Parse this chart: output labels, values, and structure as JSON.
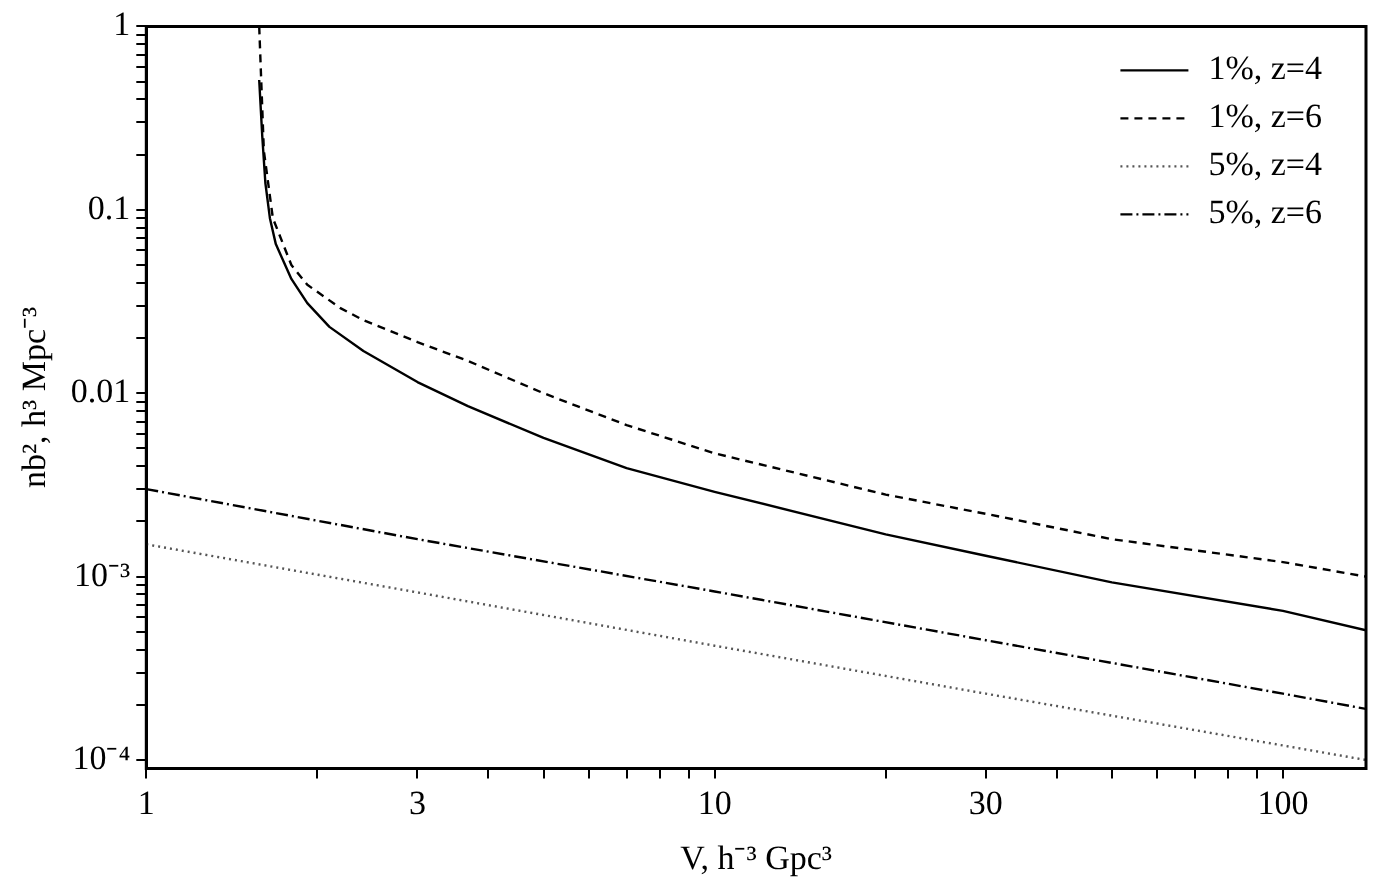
{
  "chart_data": {
    "type": "line",
    "xlabel": "V, h⁻³ Gpc³",
    "ylabel": "nb², h³ Mpc⁻³",
    "log": "xy",
    "grid": false,
    "legend": "top right",
    "marker": "none",
    "xlim": [
      1,
      140
    ],
    "xticks": [
      1,
      {
        "value": 2,
        "label": null
      },
      3,
      {
        "value": 4,
        "label": null
      },
      {
        "value": 5,
        "label": null
      },
      {
        "value": 6,
        "label": null
      },
      {
        "value": 7,
        "label": null
      },
      {
        "value": 8,
        "label": null
      },
      {
        "value": 9,
        "label": null
      },
      10,
      {
        "value": 20,
        "label": null
      },
      30,
      {
        "value": 40,
        "label": null
      },
      {
        "value": 50,
        "label": null
      },
      {
        "value": 60,
        "label": null
      },
      {
        "value": 70,
        "label": null
      },
      {
        "value": 80,
        "label": null
      },
      {
        "value": 90,
        "label": null
      },
      100
    ],
    "ylim": [
      9e-05,
      1
    ],
    "yticks": [
      {
        "value": 0.0001,
        "label": "10⁻⁴"
      },
      {
        "value": 0.0002,
        "label": null
      },
      {
        "value": 0.0003,
        "label": null
      },
      {
        "value": 0.0004,
        "label": null
      },
      {
        "value": 0.0005,
        "label": null
      },
      {
        "value": 0.0006,
        "label": null
      },
      {
        "value": 0.0007,
        "label": null
      },
      {
        "value": 0.0008,
        "label": null
      },
      {
        "value": 0.0009,
        "label": null
      },
      {
        "value": 0.001,
        "label": "10⁻³"
      },
      {
        "value": 0.002,
        "label": null
      },
      {
        "value": 0.003,
        "label": null
      },
      {
        "value": 0.004,
        "label": null
      },
      {
        "value": 0.005,
        "label": null
      },
      {
        "value": 0.006,
        "label": null
      },
      {
        "value": 0.007,
        "label": null
      },
      {
        "value": 0.008,
        "label": null
      },
      {
        "value": 0.009,
        "label": null
      },
      0.01,
      {
        "value": 0.02,
        "label": null
      },
      {
        "value": 0.03,
        "label": null
      },
      {
        "value": 0.04,
        "label": null
      },
      {
        "value": 0.05,
        "label": null
      },
      {
        "value": 0.06,
        "label": null
      },
      {
        "value": 0.07,
        "label": null
      },
      {
        "value": 0.08,
        "label": null
      },
      {
        "value": 0.09,
        "label": null
      },
      0.1,
      {
        "value": 0.2,
        "label": null
      },
      {
        "value": 0.3,
        "label": null
      },
      {
        "value": 0.4,
        "label": null
      },
      {
        "value": 0.5,
        "label": null
      },
      {
        "value": 0.6,
        "label": null
      },
      {
        "value": 0.7,
        "label": null
      },
      {
        "value": 0.8,
        "label": null
      },
      {
        "value": 0.9,
        "label": null
      },
      1
    ],
    "series": [
      {
        "name": "1%, z=4",
        "color": "#000000",
        "line_style": "solid",
        "x": [
          1.58,
          1.6,
          1.62,
          1.65,
          1.69,
          1.8,
          1.92,
          2.1,
          2.41,
          3,
          3.68,
          5,
          7,
          10,
          20,
          30,
          50,
          100,
          140
        ],
        "values": [
          0.51,
          0.25,
          0.14,
          0.09,
          0.065,
          0.042,
          0.031,
          0.023,
          0.017,
          0.0115,
          0.0085,
          0.0057,
          0.0039,
          0.0029,
          0.0017,
          0.0013,
          0.00093,
          0.00065,
          0.00051
        ]
      },
      {
        "name": "1%, z=6",
        "color": "#000000",
        "line_style": "dashed",
        "x": [
          1.58,
          1.61,
          1.67,
          1.8,
          1.92,
          2.2,
          2.41,
          3,
          3.68,
          5,
          7,
          10,
          20,
          30,
          50,
          100,
          140
        ],
        "values": [
          1,
          0.21,
          0.09,
          0.05,
          0.039,
          0.029,
          0.025,
          0.019,
          0.015,
          0.01,
          0.0067,
          0.0047,
          0.0028,
          0.0022,
          0.0016,
          0.0012,
          0.001
        ]
      },
      {
        "name": "5%, z=4",
        "color": "#555555",
        "line_style": "dotted",
        "x": [
          1,
          3,
          10,
          30,
          100,
          140
        ],
        "values": [
          0.0015,
          0.00082,
          0.00042,
          0.00023,
          0.00012,
          0.0001
        ]
      },
      {
        "name": "5%, z=6",
        "color": "#000000",
        "line_style": "dashdot",
        "x": [
          1,
          3,
          10,
          30,
          100,
          140
        ],
        "values": [
          0.003,
          0.0016,
          0.00083,
          0.00045,
          0.00023,
          0.00019
        ]
      }
    ]
  }
}
